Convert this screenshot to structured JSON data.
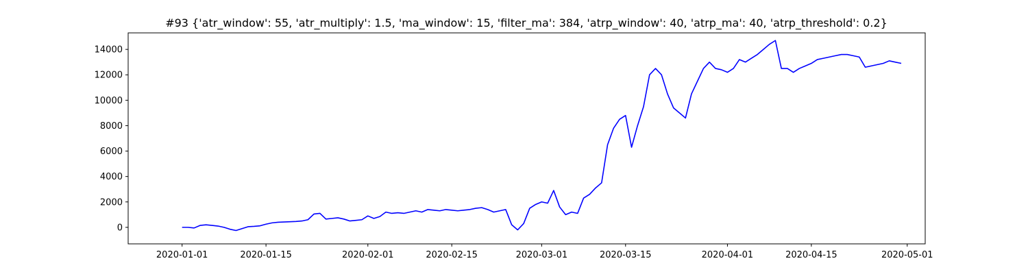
{
  "chart_data": {
    "type": "line",
    "title": "#93 {'atr_window': 55, 'atr_multiply': 1.5, 'ma_window': 15, 'filter_ma': 384, 'atrp_window': 40, 'atrp_ma': 40, 'atrp_threshold': 0.2}",
    "xlabel": "",
    "ylabel": "",
    "xlim": [
      "2019-12-23",
      "2020-05-04"
    ],
    "ylim": [
      -1300,
      15300
    ],
    "grid": false,
    "legend": "none",
    "line_color": "#0000ff",
    "xticks": [
      "2020-01-01",
      "2020-01-15",
      "2020-02-01",
      "2020-02-15",
      "2020-03-01",
      "2020-03-15",
      "2020-04-01",
      "2020-04-15",
      "2020-05-01"
    ],
    "yticks": [
      0,
      2000,
      4000,
      6000,
      8000,
      10000,
      12000,
      14000
    ],
    "series": [
      {
        "x": [
          "2020-01-01",
          "2020-01-02",
          "2020-01-03",
          "2020-01-04",
          "2020-01-05",
          "2020-01-06",
          "2020-01-07",
          "2020-01-08",
          "2020-01-09",
          "2020-01-10",
          "2020-01-11",
          "2020-01-12",
          "2020-01-13",
          "2020-01-14",
          "2020-01-15",
          "2020-01-16",
          "2020-01-17",
          "2020-01-18",
          "2020-01-19",
          "2020-01-20",
          "2020-01-21",
          "2020-01-22",
          "2020-01-23",
          "2020-01-24",
          "2020-01-25",
          "2020-01-26",
          "2020-01-27",
          "2020-01-28",
          "2020-01-29",
          "2020-01-30",
          "2020-01-31",
          "2020-02-01",
          "2020-02-02",
          "2020-02-03",
          "2020-02-04",
          "2020-02-05",
          "2020-02-06",
          "2020-02-07",
          "2020-02-08",
          "2020-02-09",
          "2020-02-10",
          "2020-02-11",
          "2020-02-12",
          "2020-02-13",
          "2020-02-14",
          "2020-02-15",
          "2020-02-16",
          "2020-02-17",
          "2020-02-18",
          "2020-02-19",
          "2020-02-20",
          "2020-02-21",
          "2020-02-22",
          "2020-02-23",
          "2020-02-24",
          "2020-02-25",
          "2020-02-26",
          "2020-02-27",
          "2020-02-28",
          "2020-02-29",
          "2020-03-01",
          "2020-03-02",
          "2020-03-03",
          "2020-03-04",
          "2020-03-05",
          "2020-03-06",
          "2020-03-07",
          "2020-03-08",
          "2020-03-09",
          "2020-03-10",
          "2020-03-11",
          "2020-03-12",
          "2020-03-13",
          "2020-03-14",
          "2020-03-15",
          "2020-03-16",
          "2020-03-17",
          "2020-03-18",
          "2020-03-19",
          "2020-03-20",
          "2020-03-21",
          "2020-03-22",
          "2020-03-23",
          "2020-03-24",
          "2020-03-25",
          "2020-03-26",
          "2020-03-27",
          "2020-03-28",
          "2020-03-29",
          "2020-03-30",
          "2020-03-31",
          "2020-04-01",
          "2020-04-02",
          "2020-04-03",
          "2020-04-04",
          "2020-04-05",
          "2020-04-06",
          "2020-04-07",
          "2020-04-08",
          "2020-04-09",
          "2020-04-10",
          "2020-04-11",
          "2020-04-12",
          "2020-04-13",
          "2020-04-14",
          "2020-04-15",
          "2020-04-16",
          "2020-04-17",
          "2020-04-18",
          "2020-04-19",
          "2020-04-20",
          "2020-04-21",
          "2020-04-22",
          "2020-04-23",
          "2020-04-24",
          "2020-04-25",
          "2020-04-26",
          "2020-04-27",
          "2020-04-28",
          "2020-04-29",
          "2020-04-30"
        ],
        "values": [
          0,
          0,
          -50,
          150,
          200,
          150,
          100,
          0,
          -150,
          -250,
          -100,
          50,
          80,
          120,
          250,
          350,
          400,
          420,
          440,
          460,
          500,
          600,
          1050,
          1100,
          650,
          700,
          750,
          650,
          500,
          550,
          600,
          900,
          700,
          850,
          1200,
          1100,
          1150,
          1100,
          1200,
          1300,
          1200,
          1400,
          1350,
          1300,
          1400,
          1350,
          1300,
          1350,
          1400,
          1500,
          1550,
          1400,
          1200,
          1300,
          1400,
          200,
          -200,
          300,
          1500,
          1800,
          2000,
          1900,
          2900,
          1600,
          1000,
          1200,
          1100,
          2300,
          2600,
          3100,
          3500,
          6500,
          7800,
          8500,
          8800,
          6300,
          8000,
          9500,
          12000,
          12500,
          12000,
          10500,
          9400,
          9000,
          8600,
          10500,
          11500,
          12500,
          13000,
          12500,
          12400,
          12200,
          12500,
          13200,
          13000,
          13300,
          13600,
          14000,
          14400,
          14700,
          12500,
          12500,
          12200,
          12500,
          12700,
          12900,
          13200,
          13300,
          13400,
          13500,
          13600,
          13600,
          13500,
          13400,
          12600,
          12700,
          12800,
          12900,
          13100,
          13000,
          12900
        ]
      }
    ]
  }
}
